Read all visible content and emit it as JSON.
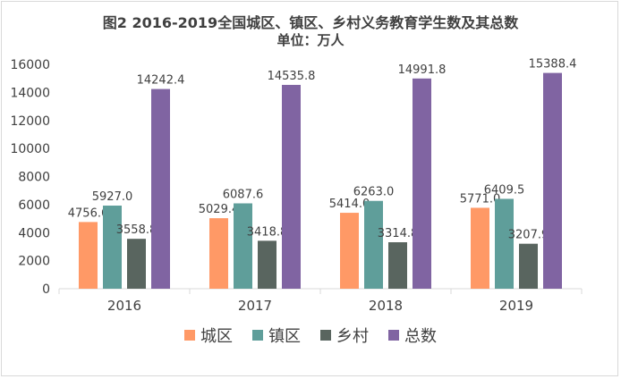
{
  "chart_data": {
    "type": "bar",
    "title": "图2 2016-2019全国城区、镇区、乡村义务教育学生数及其总数",
    "subtitle": "单位：万人",
    "categories": [
      "2016",
      "2017",
      "2018",
      "2019"
    ],
    "series": [
      {
        "name": "城区",
        "color": "#FF9966",
        "values": [
          4756.6,
          5029.4,
          5414.0,
          5771.0
        ],
        "labels": [
          "4756.6",
          "5029.4",
          "5414.0",
          "5771.0"
        ]
      },
      {
        "name": "镇区",
        "color": "#5F9E9A",
        "values": [
          5927.0,
          6087.6,
          6263.0,
          6409.5
        ],
        "labels": [
          "5927.0",
          "6087.6",
          "6263.0",
          "6409.5"
        ]
      },
      {
        "name": "乡村",
        "color": "#59655F",
        "values": [
          3558.8,
          3418.8,
          3314.8,
          3207.9
        ],
        "labels": [
          "3558.8",
          "3418.8",
          "3314.8",
          "3207.9"
        ]
      },
      {
        "name": "总数",
        "color": "#8064A2",
        "values": [
          14242.4,
          14535.8,
          14991.8,
          15388.4
        ],
        "labels": [
          "14242.4",
          "14535.8",
          "14991.8",
          "15388.4"
        ]
      }
    ],
    "yticks": [
      "0",
      "2000",
      "4000",
      "6000",
      "8000",
      "10000",
      "12000",
      "14000",
      "16000"
    ],
    "ylim": [
      0,
      16000
    ],
    "grid": false,
    "legend_position": "bottom"
  }
}
